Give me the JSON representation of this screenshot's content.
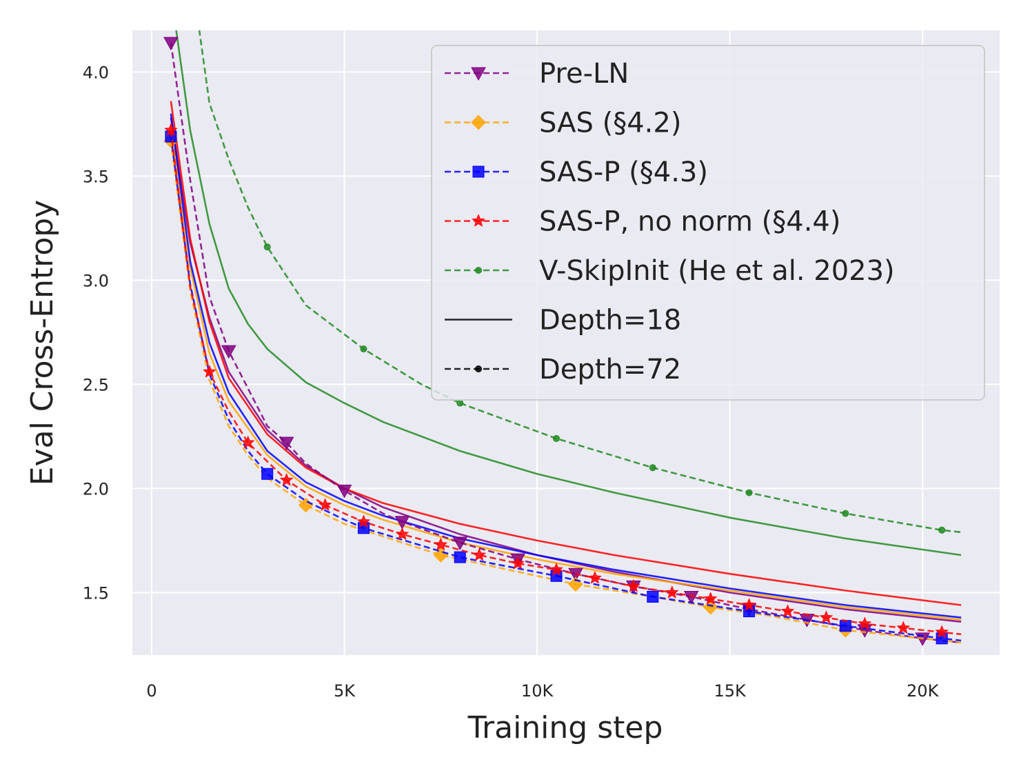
{
  "chart_data": {
    "type": "line",
    "title": "",
    "xlabel": "Training step",
    "ylabel": "Eval Cross-Entropy",
    "xlim": [
      -500,
      22000
    ],
    "ylim": [
      1.2,
      4.2
    ],
    "xticks": [
      0,
      5000,
      10000,
      15000,
      20000
    ],
    "xtick_labels": [
      "0",
      "5K",
      "10K",
      "15K",
      "20K"
    ],
    "yticks": [
      1.5,
      2.0,
      2.5,
      3.0,
      3.5,
      4.0
    ],
    "ytick_labels": [
      "1.5",
      "2.0",
      "2.5",
      "3.0",
      "3.5",
      "4.0"
    ],
    "grid": true,
    "legend_position": "top-right",
    "legend": [
      {
        "label": "Pre-LN",
        "color": "#800080",
        "style": "dashed",
        "marker": "triangle-down"
      },
      {
        "label": "SAS (§4.2)",
        "color": "#FFA500",
        "style": "dashed",
        "marker": "diamond"
      },
      {
        "label": "SAS-P (§4.3)",
        "color": "#0000FF",
        "style": "dashed",
        "marker": "square"
      },
      {
        "label": "SAS-P, no norm (§4.4)",
        "color": "#FF0000",
        "style": "dashed",
        "marker": "star"
      },
      {
        "label": "V-SkipInit (He et al. 2023)",
        "color": "#228B22",
        "style": "dashed",
        "marker": "dot"
      },
      {
        "label": "Depth=18",
        "color": "#000000",
        "style": "solid",
        "marker": "none"
      },
      {
        "label": "Depth=72",
        "color": "#000000",
        "style": "dashed",
        "marker": "dot"
      }
    ],
    "series": [
      {
        "name": "Pre-LN (Depth=18)",
        "color": "#800080",
        "dash": false,
        "marker": "none",
        "x": [
          500,
          1000,
          1500,
          2000,
          3000,
          4000,
          5000,
          6000,
          8000,
          10000,
          12000,
          15000,
          18000,
          21000
        ],
        "y": [
          3.78,
          3.18,
          2.82,
          2.56,
          2.28,
          2.11,
          2.0,
          1.91,
          1.78,
          1.68,
          1.6,
          1.5,
          1.42,
          1.36
        ]
      },
      {
        "name": "SAS (Depth=18)",
        "color": "#FFA500",
        "dash": false,
        "marker": "none",
        "x": [
          500,
          1000,
          1500,
          2000,
          3000,
          4000,
          5000,
          6000,
          8000,
          10000,
          12000,
          15000,
          18000,
          21000
        ],
        "y": [
          3.75,
          3.06,
          2.65,
          2.42,
          2.16,
          2.01,
          1.92,
          1.85,
          1.74,
          1.66,
          1.59,
          1.51,
          1.43,
          1.37
        ]
      },
      {
        "name": "SAS-P (Depth=18)",
        "color": "#0000FF",
        "dash": false,
        "marker": "none",
        "x": [
          500,
          1000,
          1500,
          2000,
          3000,
          4000,
          5000,
          6000,
          8000,
          10000,
          12000,
          15000,
          18000,
          21000
        ],
        "y": [
          3.8,
          3.09,
          2.7,
          2.46,
          2.18,
          2.03,
          1.94,
          1.87,
          1.76,
          1.68,
          1.61,
          1.52,
          1.44,
          1.38
        ]
      },
      {
        "name": "SAS-P, no norm (Depth=18)",
        "color": "#FF0000",
        "dash": false,
        "marker": "none",
        "x": [
          500,
          1000,
          1500,
          2000,
          3000,
          4000,
          5000,
          6000,
          8000,
          10000,
          12000,
          15000,
          18000,
          21000
        ],
        "y": [
          3.86,
          3.2,
          2.8,
          2.53,
          2.26,
          2.1,
          2.0,
          1.93,
          1.83,
          1.75,
          1.68,
          1.59,
          1.51,
          1.44
        ]
      },
      {
        "name": "V-SkipInit (Depth=18)",
        "color": "#228B22",
        "dash": false,
        "marker": "none",
        "x": [
          600,
          1000,
          1500,
          2000,
          2500,
          3000,
          4000,
          5000,
          6000,
          8000,
          10000,
          12000,
          15000,
          18000,
          21000
        ],
        "y": [
          4.25,
          3.72,
          3.27,
          2.96,
          2.79,
          2.67,
          2.51,
          2.41,
          2.32,
          2.18,
          2.07,
          1.98,
          1.86,
          1.76,
          1.68
        ]
      },
      {
        "name": "Pre-LN (Depth=72)",
        "color": "#800080",
        "dash": true,
        "marker": "triangle-down",
        "x": [
          500,
          1000,
          1500,
          2000,
          3000,
          3500,
          4000,
          5000,
          6000,
          6500,
          8000,
          9500,
          11000,
          12500,
          14000,
          15500,
          17000,
          18500,
          20000,
          21000
        ],
        "y": [
          4.14,
          3.48,
          2.92,
          2.66,
          2.3,
          2.22,
          2.12,
          1.99,
          1.88,
          1.84,
          1.74,
          1.66,
          1.59,
          1.53,
          1.48,
          1.42,
          1.37,
          1.32,
          1.28,
          1.26
        ],
        "marker_x": [
          500,
          2000,
          3500,
          5000,
          6500,
          8000,
          9500,
          11000,
          12500,
          14000,
          15500,
          17000,
          18500,
          20000
        ]
      },
      {
        "name": "SAS (Depth=72)",
        "color": "#FFA500",
        "dash": true,
        "marker": "diamond",
        "x": [
          500,
          1000,
          1500,
          2000,
          2500,
          3000,
          4000,
          5000,
          5500,
          7500,
          9500,
          11000,
          13000,
          14500,
          16000,
          18000,
          20000,
          21000
        ],
        "y": [
          3.67,
          2.95,
          2.52,
          2.3,
          2.16,
          2.05,
          1.92,
          1.83,
          1.8,
          1.68,
          1.6,
          1.54,
          1.48,
          1.43,
          1.39,
          1.32,
          1.28,
          1.26
        ],
        "marker_x": [
          500,
          4000,
          7500,
          11000,
          14500,
          18000
        ]
      },
      {
        "name": "SAS-P (Depth=72)",
        "color": "#0000FF",
        "dash": true,
        "marker": "square",
        "x": [
          500,
          1000,
          1500,
          2000,
          2500,
          3000,
          4000,
          5000,
          5500,
          8000,
          10500,
          13000,
          15500,
          18000,
          20500,
          21000
        ],
        "y": [
          3.69,
          2.98,
          2.55,
          2.33,
          2.18,
          2.07,
          1.94,
          1.85,
          1.81,
          1.67,
          1.58,
          1.48,
          1.41,
          1.34,
          1.28,
          1.27
        ],
        "marker_x": [
          500,
          3000,
          5500,
          8000,
          10500,
          13000,
          15500,
          18000,
          20500
        ]
      },
      {
        "name": "SAS-P, no norm (Depth=72)",
        "color": "#FF0000",
        "dash": true,
        "marker": "star",
        "x": [
          500,
          1000,
          1500,
          2000,
          2500,
          3500,
          4500,
          5500,
          6500,
          7500,
          8500,
          9500,
          10500,
          11500,
          12500,
          13500,
          14500,
          15500,
          16500,
          17500,
          18500,
          19500,
          20500,
          21000
        ],
        "y": [
          3.72,
          2.97,
          2.56,
          2.37,
          2.22,
          2.04,
          1.92,
          1.84,
          1.78,
          1.73,
          1.68,
          1.64,
          1.61,
          1.57,
          1.53,
          1.5,
          1.47,
          1.44,
          1.41,
          1.38,
          1.35,
          1.33,
          1.31,
          1.3
        ],
        "marker_x": [
          500,
          1500,
          2500,
          3500,
          4500,
          5500,
          6500,
          7500,
          8500,
          9500,
          10500,
          11500,
          12500,
          13500,
          14500,
          15500,
          16500,
          17500,
          18500,
          19500,
          20500
        ]
      },
      {
        "name": "V-SkipInit (Depth=72)",
        "color": "#228B22",
        "dash": true,
        "marker": "dot",
        "x": [
          1200,
          1500,
          2000,
          2500,
          3000,
          4000,
          5500,
          7000,
          8000,
          10500,
          13000,
          15500,
          18000,
          20500,
          21000
        ],
        "y": [
          4.25,
          3.85,
          3.58,
          3.35,
          3.16,
          2.88,
          2.67,
          2.5,
          2.41,
          2.24,
          2.1,
          1.98,
          1.88,
          1.8,
          1.79
        ],
        "marker_x": [
          3000,
          5500,
          8000,
          10500,
          13000,
          15500,
          18000,
          20500
        ]
      }
    ]
  }
}
